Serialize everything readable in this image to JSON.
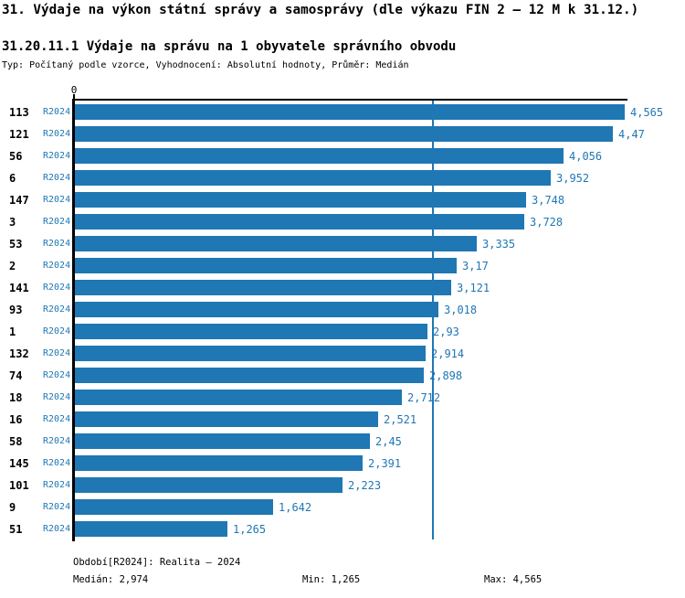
{
  "title": "31. Výdaje na výkon státní správy a samosprávy (dle výkazu FIN 2 – 12 M k 31.12.)",
  "subtitle": "31.20.11.1 Výdaje na správu na 1 obyvatele správního obvodu",
  "meta_line": "Typ: Počítaný podle vzorce, Vyhodnocení: Absolutní hodnoty, Průměr: Medián",
  "colors": {
    "bar": "#1f77b4",
    "blue_text": "#1f77b4",
    "axis": "#000000"
  },
  "chart_data": {
    "type": "bar",
    "orientation": "horizontal",
    "title": "31.20.11.1 Výdaje na správu na 1 obyvatele správního obvodu",
    "xlabel": "",
    "ylabel": "",
    "xlim": [
      0,
      4565
    ],
    "x_axis_zero_label": "0",
    "grid": false,
    "legend": false,
    "median_line": 2974,
    "categories": [
      "113",
      "121",
      "56",
      "6",
      "147",
      "3",
      "53",
      "2",
      "141",
      "93",
      "1",
      "132",
      "74",
      "18",
      "16",
      "58",
      "145",
      "101",
      "9",
      "51"
    ],
    "series": [
      {
        "name": "R2024",
        "values": [
          4565,
          4470,
          4056,
          3952,
          3748,
          3728,
          3335,
          3170,
          3121,
          3018,
          2930,
          2914,
          2898,
          2712,
          2521,
          2450,
          2391,
          2223,
          1642,
          1265
        ]
      }
    ],
    "value_labels": [
      "4,565",
      "4,47",
      "4,056",
      "3,952",
      "3,748",
      "3,728",
      "3,335",
      "3,17",
      "3,121",
      "3,018",
      "2,93",
      "2,914",
      "2,898",
      "2,712",
      "2,521",
      "2,45",
      "2,391",
      "2,223",
      "1,642",
      "1,265"
    ]
  },
  "rows": [
    {
      "rank": "113",
      "period": "R2024",
      "value": 4565,
      "label": "4,565"
    },
    {
      "rank": "121",
      "period": "R2024",
      "value": 4470,
      "label": "4,47"
    },
    {
      "rank": "56",
      "period": "R2024",
      "value": 4056,
      "label": "4,056"
    },
    {
      "rank": "6",
      "period": "R2024",
      "value": 3952,
      "label": "3,952"
    },
    {
      "rank": "147",
      "period": "R2024",
      "value": 3748,
      "label": "3,748"
    },
    {
      "rank": "3",
      "period": "R2024",
      "value": 3728,
      "label": "3,728"
    },
    {
      "rank": "53",
      "period": "R2024",
      "value": 3335,
      "label": "3,335"
    },
    {
      "rank": "2",
      "period": "R2024",
      "value": 3170,
      "label": "3,17"
    },
    {
      "rank": "141",
      "period": "R2024",
      "value": 3121,
      "label": "3,121"
    },
    {
      "rank": "93",
      "period": "R2024",
      "value": 3018,
      "label": "3,018"
    },
    {
      "rank": "1",
      "period": "R2024",
      "value": 2930,
      "label": "2,93"
    },
    {
      "rank": "132",
      "period": "R2024",
      "value": 2914,
      "label": "2,914"
    },
    {
      "rank": "74",
      "period": "R2024",
      "value": 2898,
      "label": "2,898"
    },
    {
      "rank": "18",
      "period": "R2024",
      "value": 2712,
      "label": "2,712"
    },
    {
      "rank": "16",
      "period": "R2024",
      "value": 2521,
      "label": "2,521"
    },
    {
      "rank": "58",
      "period": "R2024",
      "value": 2450,
      "label": "2,45"
    },
    {
      "rank": "145",
      "period": "R2024",
      "value": 2391,
      "label": "2,391"
    },
    {
      "rank": "101",
      "period": "R2024",
      "value": 2223,
      "label": "2,223"
    },
    {
      "rank": "9",
      "period": "R2024",
      "value": 1642,
      "label": "1,642"
    },
    {
      "rank": "51",
      "period": "R2024",
      "value": 1265,
      "label": "1,265"
    }
  ],
  "footer": {
    "period_line": "Období[R2024]: Realita – 2024",
    "median": "Medián: 2,974",
    "min": "Min: 1,265",
    "max": "Max: 4,565"
  }
}
